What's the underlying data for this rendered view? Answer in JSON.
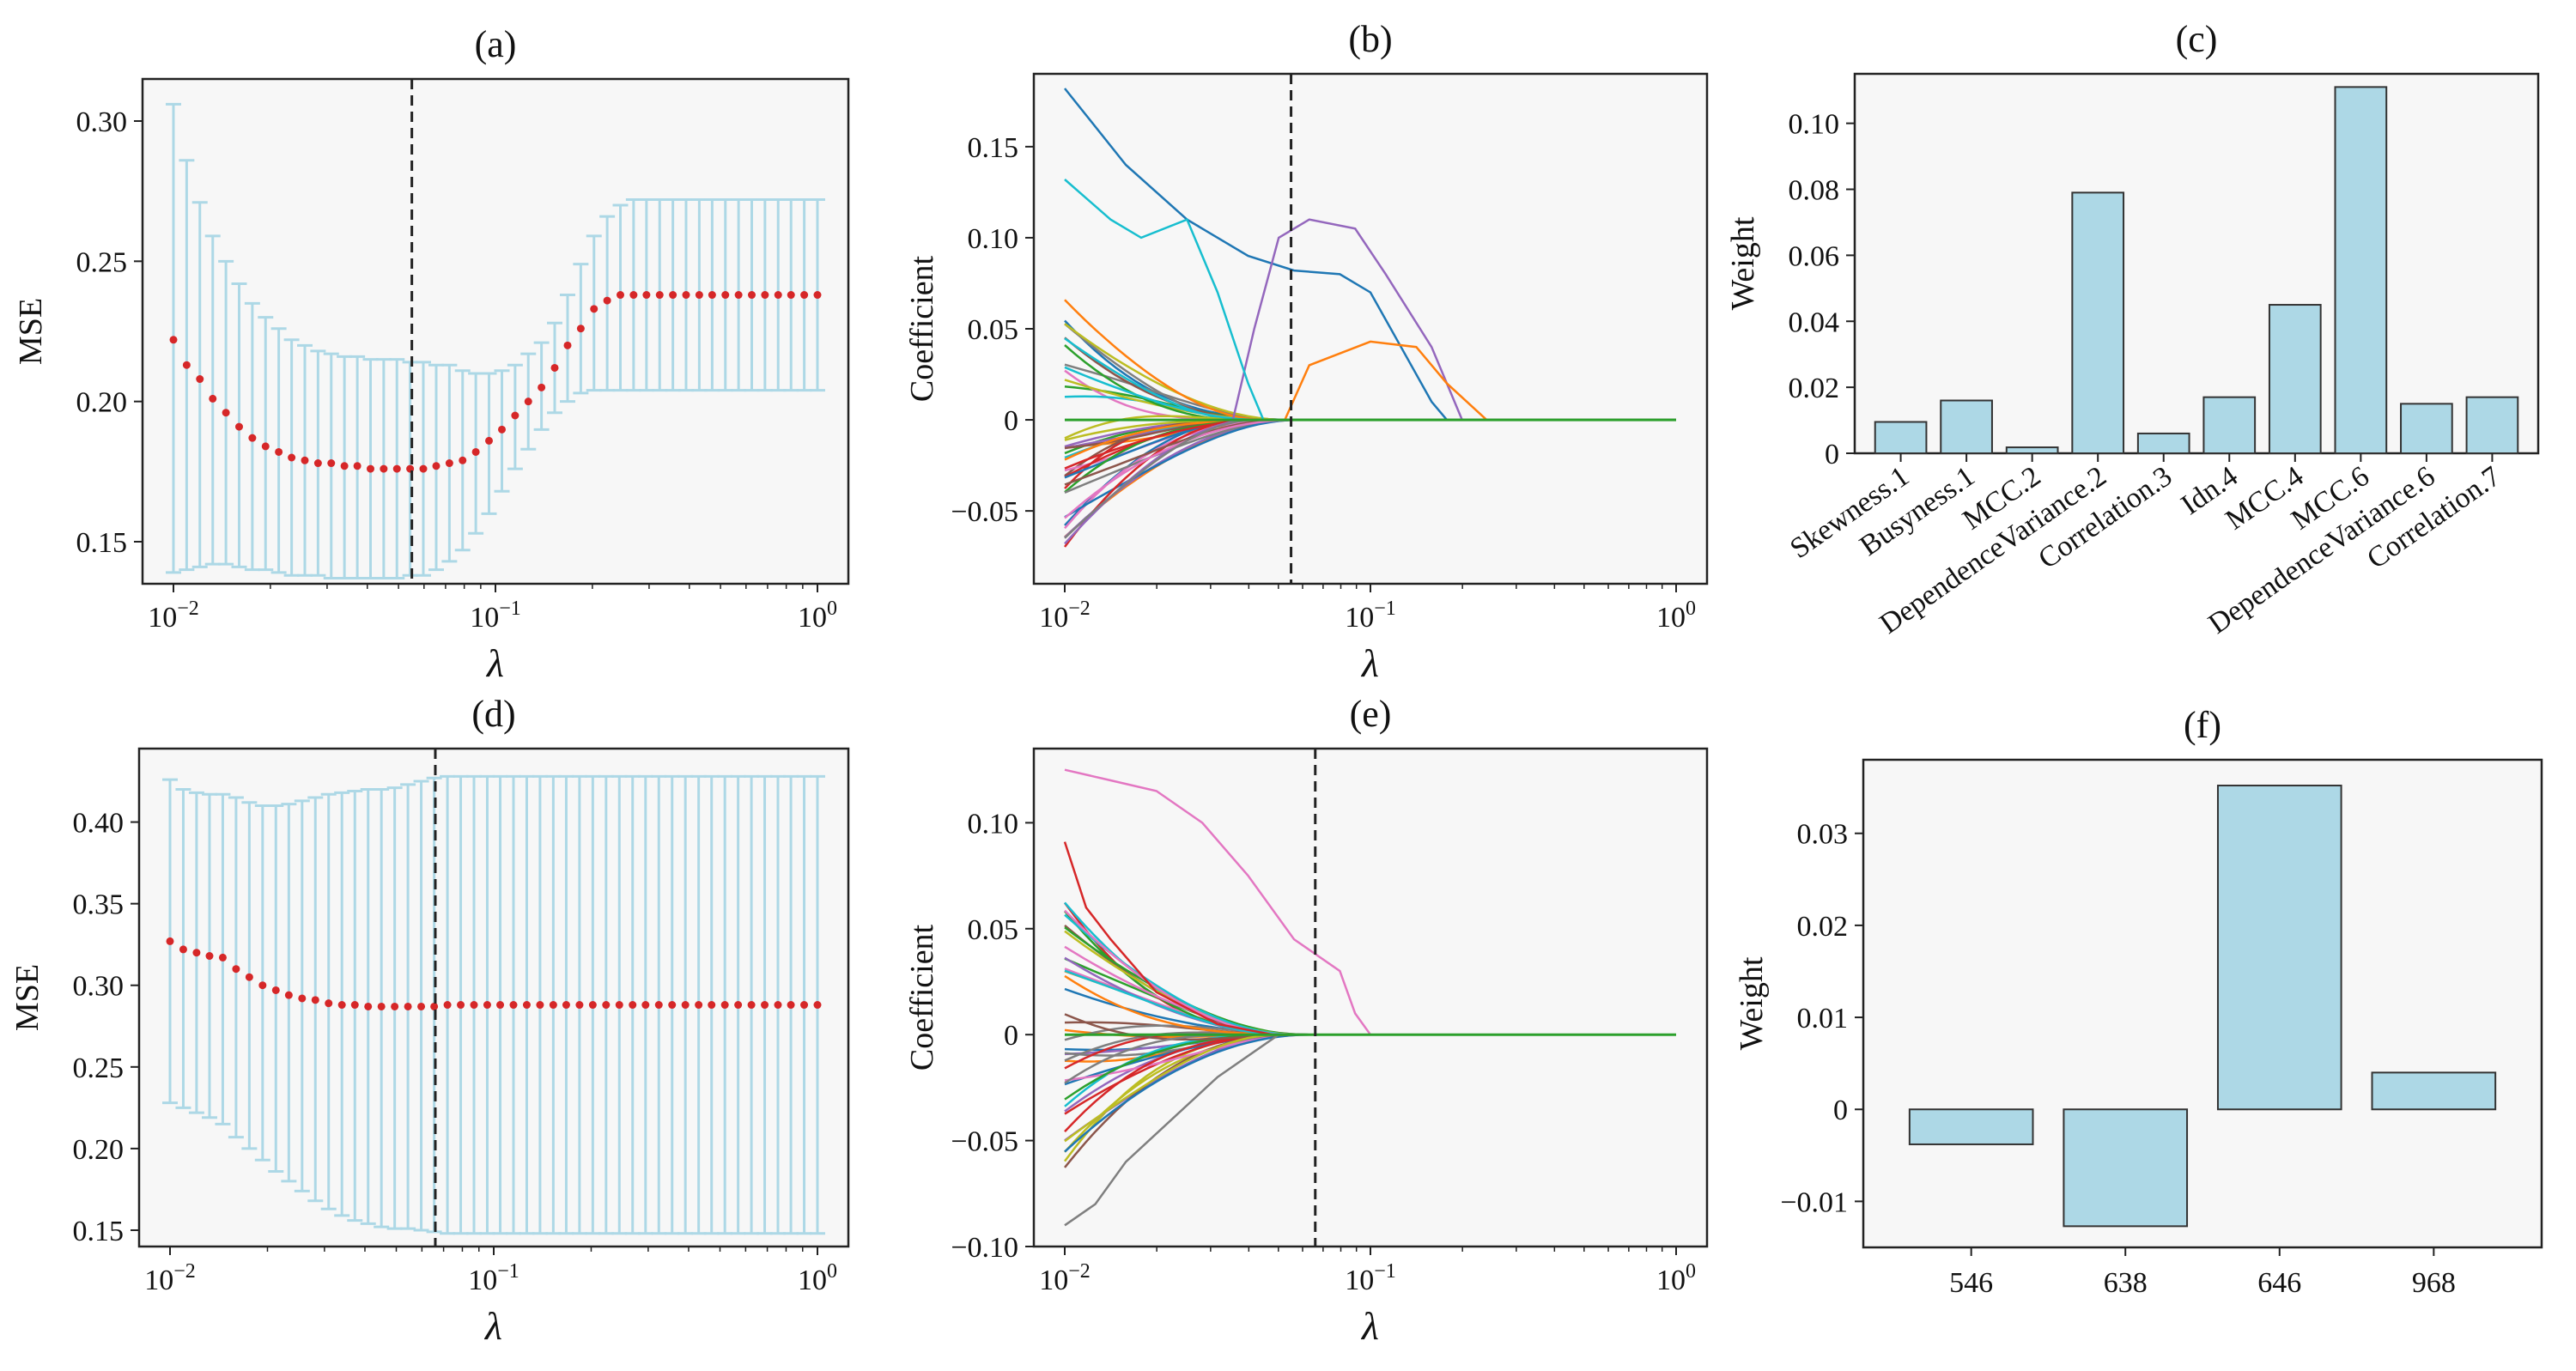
{
  "colors": {
    "errorbar": "#add8e6",
    "mean_point": "#d62728",
    "bar_fill": "#add8e6",
    "bar_edge": "#333333",
    "plot_bg": "#f7f7f7",
    "dashed_line": "#222222"
  },
  "chart_data": [
    {
      "panel": "(a)",
      "type": "scatter",
      "title": "(a)",
      "xlabel": "λ",
      "ylabel": "MSE",
      "xscale": "log",
      "xlim": [
        0.01,
        1
      ],
      "ylim": [
        0.135,
        0.315
      ],
      "yticks": [
        "0.15",
        "0.20",
        "0.25",
        "0.30"
      ],
      "xticks": [
        "10⁻²",
        "10⁻¹",
        "10⁰"
      ],
      "selected_lambda": 0.055,
      "series": {
        "x_log10": [
          -2.0,
          -1.959,
          -1.918,
          -1.878,
          -1.837,
          -1.796,
          -1.755,
          -1.714,
          -1.673,
          -1.633,
          -1.592,
          -1.551,
          -1.51,
          -1.469,
          -1.429,
          -1.388,
          -1.347,
          -1.306,
          -1.265,
          -1.224,
          -1.184,
          -1.143,
          -1.102,
          -1.061,
          -1.02,
          -0.98,
          -0.939,
          -0.898,
          -0.857,
          -0.816,
          -0.776,
          -0.735,
          -0.694,
          -0.653,
          -0.612,
          -0.571,
          -0.531,
          -0.49,
          -0.449,
          -0.408,
          -0.367,
          -0.327,
          -0.286,
          -0.245,
          -0.204,
          -0.163,
          -0.122,
          -0.082,
          -0.041,
          0.0
        ],
        "mean": [
          0.222,
          0.213,
          0.208,
          0.201,
          0.196,
          0.191,
          0.187,
          0.184,
          0.182,
          0.18,
          0.179,
          0.178,
          0.178,
          0.177,
          0.177,
          0.176,
          0.176,
          0.176,
          0.176,
          0.176,
          0.177,
          0.178,
          0.179,
          0.182,
          0.186,
          0.19,
          0.195,
          0.2,
          0.205,
          0.212,
          0.22,
          0.226,
          0.233,
          0.236,
          0.238,
          0.238,
          0.238,
          0.238,
          0.238,
          0.238,
          0.238,
          0.238,
          0.238,
          0.238,
          0.238,
          0.238,
          0.238,
          0.238,
          0.238,
          0.238
        ],
        "upper": [
          0.306,
          0.286,
          0.271,
          0.259,
          0.25,
          0.242,
          0.235,
          0.23,
          0.226,
          0.222,
          0.22,
          0.218,
          0.217,
          0.216,
          0.216,
          0.215,
          0.215,
          0.215,
          0.214,
          0.214,
          0.213,
          0.213,
          0.211,
          0.21,
          0.21,
          0.211,
          0.213,
          0.217,
          0.221,
          0.228,
          0.238,
          0.249,
          0.259,
          0.266,
          0.27,
          0.272,
          0.272,
          0.272,
          0.272,
          0.272,
          0.272,
          0.272,
          0.272,
          0.272,
          0.272,
          0.272,
          0.272,
          0.272,
          0.272,
          0.272
        ],
        "lower": [
          0.139,
          0.14,
          0.141,
          0.142,
          0.142,
          0.141,
          0.14,
          0.14,
          0.139,
          0.138,
          0.138,
          0.138,
          0.137,
          0.137,
          0.137,
          0.137,
          0.137,
          0.137,
          0.138,
          0.138,
          0.14,
          0.143,
          0.147,
          0.153,
          0.16,
          0.168,
          0.176,
          0.183,
          0.19,
          0.196,
          0.2,
          0.203,
          0.204,
          0.204,
          0.204,
          0.204,
          0.204,
          0.204,
          0.204,
          0.204,
          0.204,
          0.204,
          0.204,
          0.204,
          0.204,
          0.204,
          0.204,
          0.204,
          0.204,
          0.204
        ]
      }
    },
    {
      "panel": "(b)",
      "type": "line",
      "title": "(b)",
      "xlabel": "λ",
      "ylabel": "Coefficient",
      "xscale": "log",
      "xlim": [
        0.01,
        1
      ],
      "ylim": [
        -0.09,
        0.19
      ],
      "yticks": [
        "−0.05",
        "0",
        "0.05",
        "0.10",
        "0.15"
      ],
      "xticks": [
        "10⁻²",
        "10⁻¹",
        "10⁰"
      ],
      "selected_lambda": 0.055,
      "path_count": 40
    },
    {
      "panel": "(c)",
      "type": "bar",
      "title": "(c)",
      "xlabel": "",
      "ylabel": "Weight",
      "ylim": [
        0,
        0.115
      ],
      "yticks": [
        "0",
        "0.02",
        "0.04",
        "0.06",
        "0.08",
        "0.10"
      ],
      "categories": [
        "Skewness.1",
        "Busyness.1",
        "MCC.2",
        "DependenceVariance.2",
        "Correlation.3",
        "Idn.4",
        "MCC.4",
        "MCC.6",
        "DependenceVariance.6",
        "Correlation.7"
      ],
      "values": [
        0.0095,
        0.016,
        0.0018,
        0.079,
        0.006,
        0.017,
        0.045,
        0.111,
        0.015,
        0.017
      ]
    },
    {
      "panel": "(d)",
      "type": "scatter",
      "title": "(d)",
      "xlabel": "λ",
      "ylabel": "MSE",
      "xscale": "log",
      "xlim": [
        0.01,
        1
      ],
      "ylim": [
        0.14,
        0.445
      ],
      "yticks": [
        "0.15",
        "0.20",
        "0.25",
        "0.30",
        "0.35",
        "0.40"
      ],
      "xticks": [
        "10⁻²",
        "10⁻¹",
        "10⁰"
      ],
      "selected_lambda": 0.066,
      "series": {
        "x_log10": [
          -2.0,
          -1.959,
          -1.918,
          -1.878,
          -1.837,
          -1.796,
          -1.755,
          -1.714,
          -1.673,
          -1.633,
          -1.592,
          -1.551,
          -1.51,
          -1.469,
          -1.429,
          -1.388,
          -1.347,
          -1.306,
          -1.265,
          -1.224,
          -1.184,
          -1.143,
          -1.102,
          -1.061,
          -1.02,
          -0.98,
          -0.939,
          -0.898,
          -0.857,
          -0.816,
          -0.776,
          -0.735,
          -0.694,
          -0.653,
          -0.612,
          -0.571,
          -0.531,
          -0.49,
          -0.449,
          -0.408,
          -0.367,
          -0.327,
          -0.286,
          -0.245,
          -0.204,
          -0.163,
          -0.122,
          -0.082,
          -0.041,
          0.0
        ],
        "mean": [
          0.327,
          0.322,
          0.32,
          0.318,
          0.317,
          0.31,
          0.305,
          0.3,
          0.297,
          0.294,
          0.292,
          0.291,
          0.289,
          0.288,
          0.288,
          0.287,
          0.287,
          0.287,
          0.287,
          0.287,
          0.287,
          0.288,
          0.288,
          0.288,
          0.288,
          0.288,
          0.288,
          0.288,
          0.288,
          0.288,
          0.288,
          0.288,
          0.288,
          0.288,
          0.288,
          0.288,
          0.288,
          0.288,
          0.288,
          0.288,
          0.288,
          0.288,
          0.288,
          0.288,
          0.288,
          0.288,
          0.288,
          0.288,
          0.288,
          0.288
        ],
        "upper": [
          0.426,
          0.42,
          0.418,
          0.417,
          0.417,
          0.415,
          0.412,
          0.41,
          0.41,
          0.411,
          0.413,
          0.415,
          0.417,
          0.418,
          0.419,
          0.42,
          0.42,
          0.421,
          0.423,
          0.425,
          0.427,
          0.428,
          0.428,
          0.428,
          0.428,
          0.428,
          0.428,
          0.428,
          0.428,
          0.428,
          0.428,
          0.428,
          0.428,
          0.428,
          0.428,
          0.428,
          0.428,
          0.428,
          0.428,
          0.428,
          0.428,
          0.428,
          0.428,
          0.428,
          0.428,
          0.428,
          0.428,
          0.428,
          0.428,
          0.428
        ],
        "lower": [
          0.228,
          0.225,
          0.222,
          0.219,
          0.215,
          0.207,
          0.2,
          0.193,
          0.186,
          0.18,
          0.174,
          0.168,
          0.163,
          0.159,
          0.156,
          0.154,
          0.152,
          0.151,
          0.151,
          0.15,
          0.149,
          0.148,
          0.148,
          0.148,
          0.148,
          0.148,
          0.148,
          0.148,
          0.148,
          0.148,
          0.148,
          0.148,
          0.148,
          0.148,
          0.148,
          0.148,
          0.148,
          0.148,
          0.148,
          0.148,
          0.148,
          0.148,
          0.148,
          0.148,
          0.148,
          0.148,
          0.148,
          0.148,
          0.148,
          0.148
        ]
      }
    },
    {
      "panel": "(e)",
      "type": "line",
      "title": "(e)",
      "xlabel": "λ",
      "ylabel": "Coefficient",
      "xscale": "log",
      "xlim": [
        0.01,
        1
      ],
      "ylim": [
        -0.1,
        0.135
      ],
      "yticks": [
        "−0.10",
        "−0.05",
        "0",
        "0.05",
        "0.10"
      ],
      "xticks": [
        "10⁻²",
        "10⁻¹",
        "10⁰"
      ],
      "selected_lambda": 0.066,
      "path_count": 40
    },
    {
      "panel": "(f)",
      "type": "bar",
      "title": "(f)",
      "xlabel": "",
      "ylabel": "Weight",
      "ylim": [
        -0.015,
        0.038
      ],
      "yticks": [
        "−0.01",
        "0",
        "0.01",
        "0.02",
        "0.03"
      ],
      "categories": [
        "546",
        "638",
        "646",
        "968"
      ],
      "values": [
        -0.0038,
        -0.0127,
        0.0352,
        0.004
      ]
    }
  ]
}
